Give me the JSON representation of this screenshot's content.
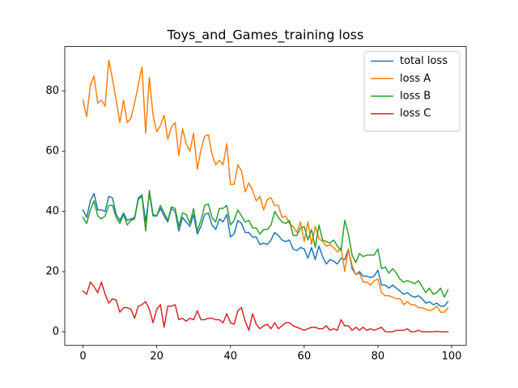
{
  "chart_data": {
    "type": "line",
    "title": "Toys_and_Games_training loss",
    "x": [
      0,
      1,
      2,
      3,
      4,
      5,
      6,
      7,
      8,
      9,
      10,
      11,
      12,
      13,
      14,
      15,
      16,
      17,
      18,
      19,
      20,
      21,
      22,
      23,
      24,
      25,
      26,
      27,
      28,
      29,
      30,
      31,
      32,
      33,
      34,
      35,
      36,
      37,
      38,
      39,
      40,
      41,
      42,
      43,
      44,
      45,
      46,
      47,
      48,
      49,
      50,
      51,
      52,
      53,
      54,
      55,
      56,
      57,
      58,
      59,
      60,
      61,
      62,
      63,
      64,
      65,
      66,
      67,
      68,
      69,
      70,
      71,
      72,
      73,
      74,
      75,
      76,
      77,
      78,
      79,
      80,
      81,
      82,
      83,
      84,
      85,
      86,
      87,
      88,
      89,
      90,
      91,
      92,
      93,
      94,
      95,
      96,
      97,
      98,
      99
    ],
    "series": [
      {
        "name": "total loss",
        "color": "#1f77b4",
        "values": [
          40.5,
          38,
          43.5,
          46,
          40.5,
          40.5,
          40,
          45,
          44.5,
          39,
          37,
          39.5,
          37,
          37.5,
          38,
          44.5,
          45.5,
          36.5,
          46,
          38.5,
          38.5,
          41,
          38.5,
          36.5,
          41,
          40,
          33.5,
          38,
          36.5,
          35,
          39,
          32.5,
          35,
          39,
          39.5,
          35.5,
          34,
          37.5,
          36.5,
          39,
          31.5,
          32.5,
          37,
          36,
          33,
          33,
          31.5,
          31.5,
          29,
          29.5,
          29,
          30.5,
          33,
          32,
          30.5,
          30,
          30.5,
          27.5,
          27,
          28,
          27.5,
          24.5,
          28,
          24,
          28.5,
          25,
          22.5,
          24,
          23.5,
          22.5,
          24.5,
          24,
          27.5,
          21,
          19,
          20,
          18.5,
          18.5,
          18,
          18.5,
          20.5,
          15.5,
          15.5,
          14.5,
          15.5,
          14.5,
          13.5,
          12.5,
          13,
          12,
          11.5,
          12,
          11,
          9.5,
          10,
          9,
          9.5,
          8.5,
          8.5,
          10
        ]
      },
      {
        "name": "loss A",
        "color": "#ff7f0e",
        "values": [
          77,
          71.5,
          82,
          85,
          76,
          77,
          75,
          90.3,
          84,
          77,
          69.5,
          77,
          69.5,
          71,
          76,
          82,
          88,
          66,
          84.5,
          72,
          66.5,
          68.5,
          72,
          64,
          68,
          69.5,
          58.5,
          67.5,
          62.5,
          60,
          66,
          54,
          60.5,
          65,
          65.5,
          59,
          55.5,
          57,
          55.5,
          62.5,
          49,
          49,
          55.5,
          53.5,
          46.5,
          49.5,
          47,
          43.5,
          45,
          40.5,
          44,
          44.5,
          42,
          42,
          38,
          38.5,
          36,
          35,
          33,
          36.5,
          30,
          36.5,
          29,
          35,
          31,
          30,
          28.5,
          29,
          28,
          26.5,
          28,
          20,
          27.5,
          22,
          19,
          19.5,
          16.5,
          16.5,
          15.5,
          17,
          17.5,
          13,
          12,
          12,
          11.5,
          11,
          11,
          9,
          10,
          9,
          9,
          8,
          8,
          7.5,
          7,
          7.5,
          8.5,
          6.5,
          6.5,
          8
        ]
      },
      {
        "name": "loss B",
        "color": "#2ca02c",
        "values": [
          38,
          36,
          40.5,
          43.5,
          38.5,
          37.5,
          38.5,
          42,
          42,
          38,
          36,
          39,
          35.5,
          37,
          37.5,
          44,
          45,
          33.5,
          47,
          39,
          38.5,
          42,
          39.5,
          37,
          41.5,
          41,
          35,
          39.5,
          39,
          36,
          41,
          33.5,
          37,
          42,
          42.5,
          38,
          36.5,
          41,
          41,
          42,
          35.5,
          37,
          40.5,
          38.5,
          36.5,
          37,
          34.5,
          34.5,
          32.5,
          34,
          34,
          35.5,
          40,
          38,
          36.5,
          36,
          37,
          32,
          32,
          34.5,
          35,
          30.5,
          34,
          28,
          35.5,
          30.5,
          30,
          29.5,
          30.5,
          28.5,
          27,
          37,
          32.5,
          25.5,
          23,
          26,
          25,
          25.5,
          25.5,
          25.5,
          27.5,
          21,
          21.5,
          19.5,
          21,
          19.5,
          17.5,
          16.5,
          17,
          16.5,
          16,
          17,
          15,
          13,
          14.5,
          12.5,
          13,
          14.5,
          11.5,
          14
        ]
      },
      {
        "name": "loss C",
        "color": "#d62728",
        "values": [
          13.5,
          12.5,
          16.5,
          15,
          13,
          16.5,
          12.5,
          9.5,
          11,
          10.5,
          6.5,
          8,
          8,
          7.5,
          4.5,
          8.5,
          9,
          10,
          7.5,
          3,
          7.5,
          9,
          1.5,
          8.5,
          8.5,
          9,
          4,
          4.5,
          3.5,
          4.5,
          4,
          7,
          4,
          4,
          4.5,
          4.5,
          4,
          4,
          3,
          6,
          3,
          2.5,
          7,
          8,
          3.5,
          0.5,
          6,
          2.5,
          1,
          2,
          2.5,
          1,
          3,
          1,
          2,
          3,
          3,
          2,
          1.5,
          1,
          0.5,
          1,
          1.5,
          1.5,
          1,
          1,
          2,
          0.5,
          1,
          0.5,
          4,
          2,
          2,
          0.5,
          1.5,
          0.5,
          1.5,
          0.5,
          1,
          0.5,
          1,
          1.5,
          0,
          0,
          0,
          0.5,
          0.5,
          0.5,
          1,
          0,
          0,
          0.5,
          0,
          0,
          0,
          0,
          0.1,
          0,
          0,
          0
        ]
      }
    ],
    "xlim": [
      -4.95,
      103.95
    ],
    "xticks": [
      0,
      20,
      40,
      60,
      80,
      100
    ],
    "ylim": [
      -4.5,
      94.8
    ],
    "yticks": [
      0,
      20,
      40,
      60,
      80
    ],
    "legend": "upper right"
  }
}
